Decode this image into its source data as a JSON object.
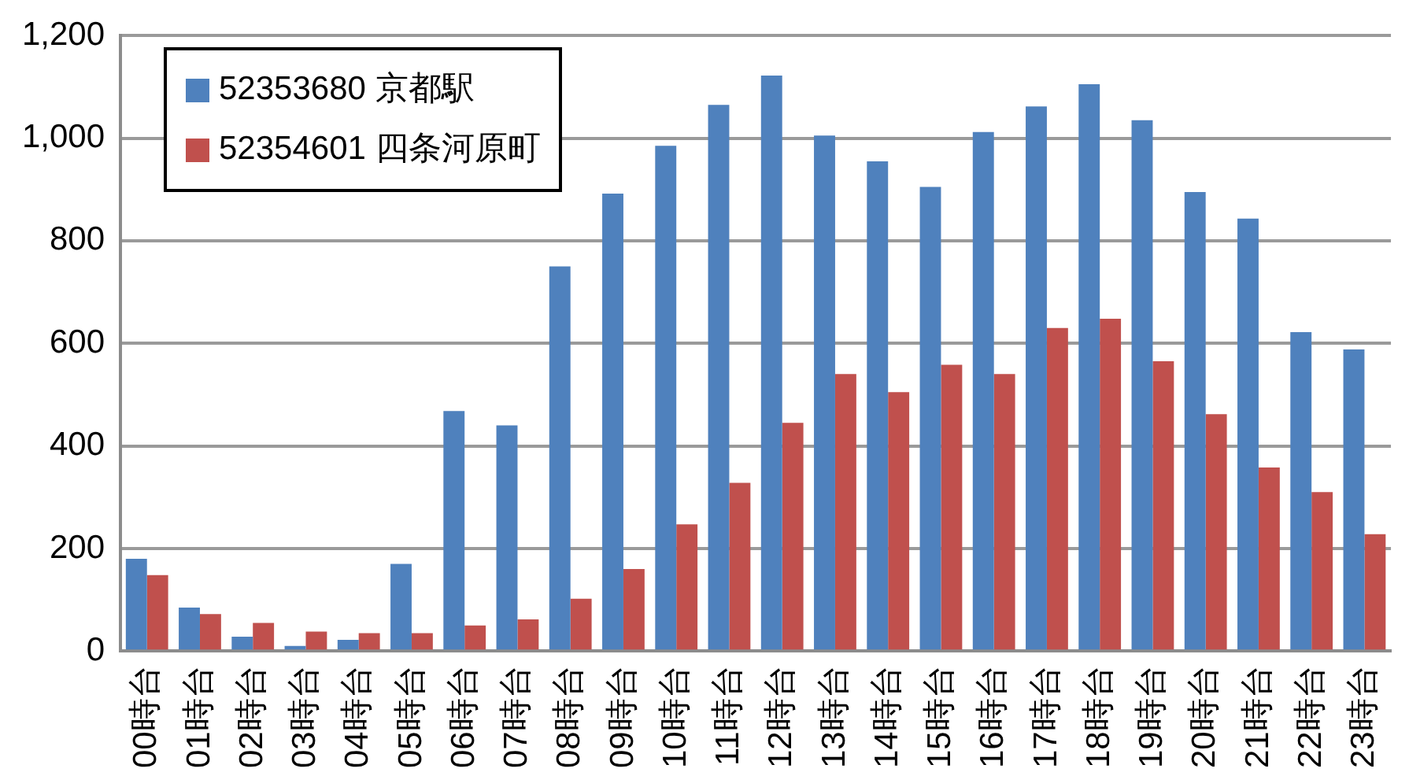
{
  "chart_data": {
    "type": "bar",
    "categories": [
      "00時台",
      "01時台",
      "02時台",
      "03時台",
      "04時台",
      "05時台",
      "06時台",
      "07時台",
      "08時台",
      "09時台",
      "10時台",
      "11時台",
      "12時台",
      "13時台",
      "14時台",
      "15時台",
      "16時台",
      "17時台",
      "18時台",
      "19時台",
      "20時台",
      "21時台",
      "22時台",
      "23時台"
    ],
    "series": [
      {
        "name": "52353680 京都駅",
        "color": "#4f81bd",
        "values": [
          180,
          85,
          28,
          10,
          22,
          170,
          468,
          440,
          750,
          892,
          985,
          1065,
          1122,
          1005,
          955,
          905,
          1012,
          1062,
          1105,
          1035,
          895,
          843,
          622,
          588
        ]
      },
      {
        "name": "52354601 四条河原町",
        "color": "#c0504d",
        "values": [
          148,
          72,
          55,
          38,
          35,
          35,
          50,
          62,
          102,
          160,
          247,
          328,
          445,
          540,
          505,
          558,
          540,
          630,
          648,
          565,
          462,
          358,
          310,
          228
        ]
      }
    ],
    "ylim": [
      0,
      1200
    ],
    "yticks": [
      {
        "value": 0,
        "label": "0"
      },
      {
        "value": 200,
        "label": "200"
      },
      {
        "value": 400,
        "label": "400"
      },
      {
        "value": 600,
        "label": "600"
      },
      {
        "value": 800,
        "label": "800"
      },
      {
        "value": 1000,
        "label": "1,000"
      },
      {
        "value": 1200,
        "label": "1,200"
      }
    ],
    "grid": "y",
    "legend": "top left"
  }
}
